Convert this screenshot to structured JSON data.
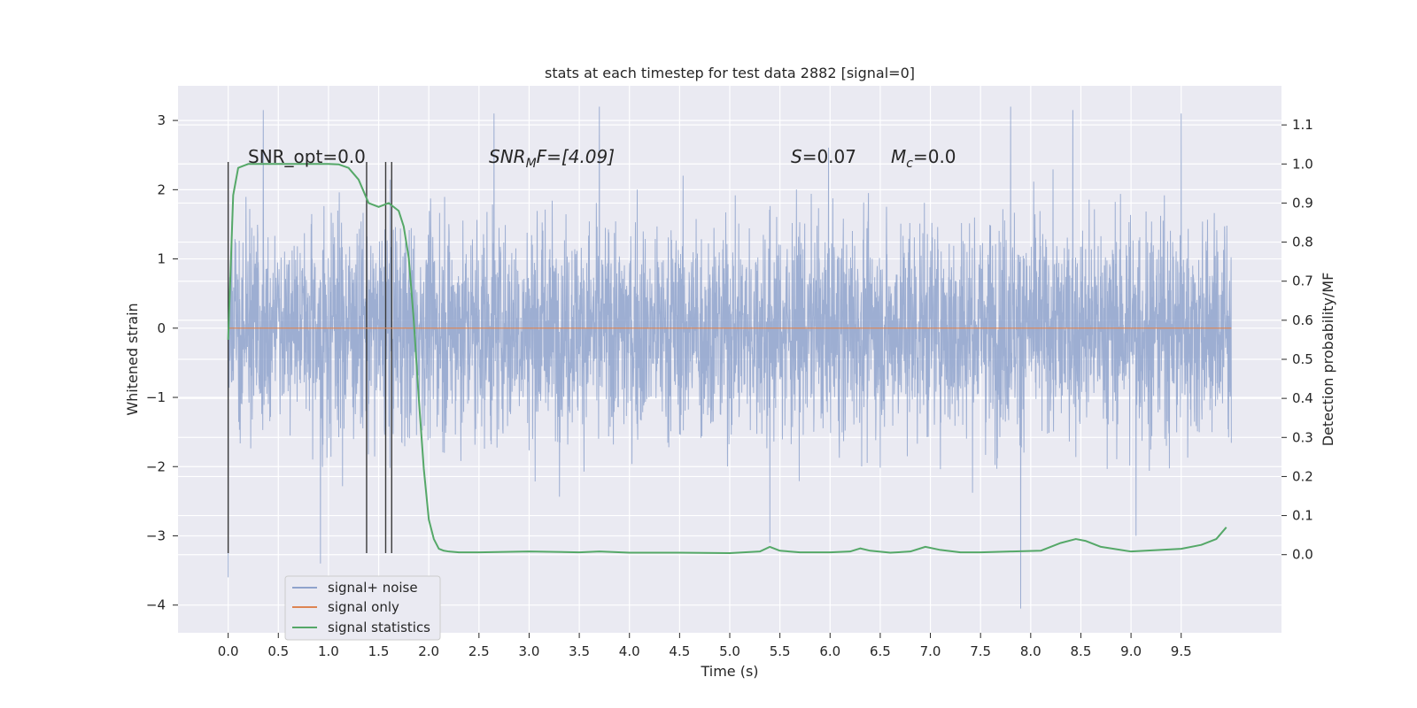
{
  "chart_data": {
    "type": "line",
    "title": "stats at each timestep for test data 2882 [signal=0]",
    "xlabel": "Time (s)",
    "ylabel": "Whitened strain",
    "y2label": "Detection probability/MF",
    "xlim": [
      -0.5,
      10.5
    ],
    "ylim": [
      -4.4,
      3.5
    ],
    "y2lim": [
      -0.2,
      1.2
    ],
    "x_ticks": [
      "0.0",
      "0.5",
      "1.0",
      "1.5",
      "2.0",
      "2.5",
      "3.0",
      "3.5",
      "4.0",
      "4.5",
      "5.0",
      "5.5",
      "6.0",
      "6.5",
      "7.0",
      "7.5",
      "8.0",
      "8.5",
      "9.0",
      "9.5"
    ],
    "y_ticks": [
      "3",
      "2",
      "1",
      "0",
      "−1",
      "−2",
      "−3",
      "−4"
    ],
    "y2_ticks": [
      "1.1",
      "1.0",
      "0.9",
      "0.8",
      "0.7",
      "0.6",
      "0.5",
      "0.4",
      "0.3",
      "0.2",
      "0.1",
      "0.0"
    ],
    "grid": true,
    "legend_position": "lower-left",
    "annotations": {
      "snr_opt": "SNR_opt=0.0",
      "snr_mf_main": "SNR",
      "snr_mf_sub": "M",
      "snr_mf_rest": "F=[4.09]",
      "s_main": "S",
      "s_rest": "=0.07",
      "mc_main": "M",
      "mc_sub": "c",
      "mc_rest": "=0.0"
    },
    "series": [
      {
        "name": "signal+ noise",
        "color": "#8fa3cc",
        "x_range": [
          0.0,
          10.0
        ],
        "typical_range": [
          -1.6,
          1.6
        ],
        "extremes": [
          [
            0.0,
            -3.6
          ],
          [
            0.35,
            3.15
          ],
          [
            0.92,
            -3.4
          ],
          [
            2.65,
            3.1
          ],
          [
            3.7,
            3.2
          ],
          [
            5.4,
            -3.1
          ],
          [
            7.8,
            3.2
          ],
          [
            7.9,
            -4.05
          ],
          [
            8.42,
            3.15
          ],
          [
            9.5,
            3.1
          ],
          [
            9.05,
            -3.0
          ]
        ]
      },
      {
        "name": "signal only",
        "color": "#dd8452",
        "x": [
          0.0,
          10.0
        ],
        "y": [
          0.0,
          0.0
        ]
      },
      {
        "name": "signal statistics",
        "color": "#55a868",
        "axis": "right",
        "x": [
          0.0,
          0.05,
          0.1,
          0.15,
          0.2,
          0.3,
          0.5,
          0.8,
          1.0,
          1.1,
          1.2,
          1.3,
          1.4,
          1.5,
          1.6,
          1.7,
          1.75,
          1.8,
          1.85,
          1.9,
          1.95,
          2.0,
          2.05,
          2.1,
          2.15,
          2.2,
          2.3,
          2.5,
          3.0,
          3.5,
          3.7,
          4.0,
          4.5,
          5.0,
          5.3,
          5.4,
          5.5,
          5.7,
          6.0,
          6.2,
          6.3,
          6.4,
          6.6,
          6.8,
          6.95,
          7.1,
          7.3,
          7.5,
          7.8,
          8.1,
          8.3,
          8.45,
          8.55,
          8.7,
          9.0,
          9.5,
          9.7,
          9.85,
          9.95
        ],
        "y": [
          0.55,
          0.92,
          0.99,
          0.995,
          1.0,
          1.0,
          1.0,
          1.0,
          1.0,
          0.999,
          0.99,
          0.96,
          0.9,
          0.89,
          0.9,
          0.88,
          0.84,
          0.76,
          0.6,
          0.4,
          0.22,
          0.09,
          0.04,
          0.015,
          0.01,
          0.008,
          0.006,
          0.006,
          0.008,
          0.006,
          0.008,
          0.005,
          0.005,
          0.004,
          0.008,
          0.02,
          0.01,
          0.006,
          0.006,
          0.008,
          0.016,
          0.01,
          0.005,
          0.008,
          0.02,
          0.012,
          0.006,
          0.006,
          0.008,
          0.01,
          0.03,
          0.04,
          0.035,
          0.02,
          0.008,
          0.015,
          0.025,
          0.04,
          0.07
        ]
      }
    ],
    "vertical_markers": [
      {
        "x": 0.0,
        "y_top": 2.4,
        "y_bottom": -3.25
      },
      {
        "x": 1.38,
        "y_top": 2.4,
        "y_bottom": -3.25
      },
      {
        "x": 1.57,
        "y_top": 2.4,
        "y_bottom": -3.25
      },
      {
        "x": 1.63,
        "y_top": 2.4,
        "y_bottom": -3.25
      }
    ]
  }
}
